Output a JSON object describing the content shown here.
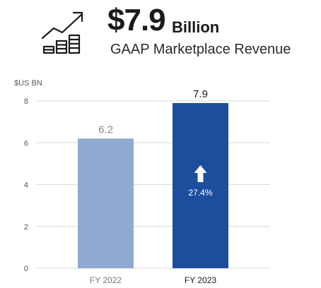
{
  "headline": {
    "value": "$7.9",
    "unit": "Billion",
    "subtitle": "GAAP Marketplace Revenue",
    "icon": "growth-chart-icon"
  },
  "colors": {
    "fy2022_bar": "#8FA9D1",
    "fy2023_bar": "#1D4E9E",
    "gridline": "#D9D9D9",
    "axis_text": "#777777",
    "dark_text": "#1a1a1a"
  },
  "chart_data": {
    "type": "bar",
    "ylabel": "$US BN",
    "ylim": [
      0,
      8
    ],
    "yticks": [
      0,
      2,
      4,
      6,
      8
    ],
    "categories": [
      "FY 2022",
      "FY 2023"
    ],
    "values": [
      6.2,
      7.9
    ],
    "value_labels": [
      "6.2",
      "7.9"
    ],
    "annotation": {
      "category": "FY 2023",
      "text": "27.4%",
      "icon": "up-arrow-icon"
    },
    "grid": true
  }
}
